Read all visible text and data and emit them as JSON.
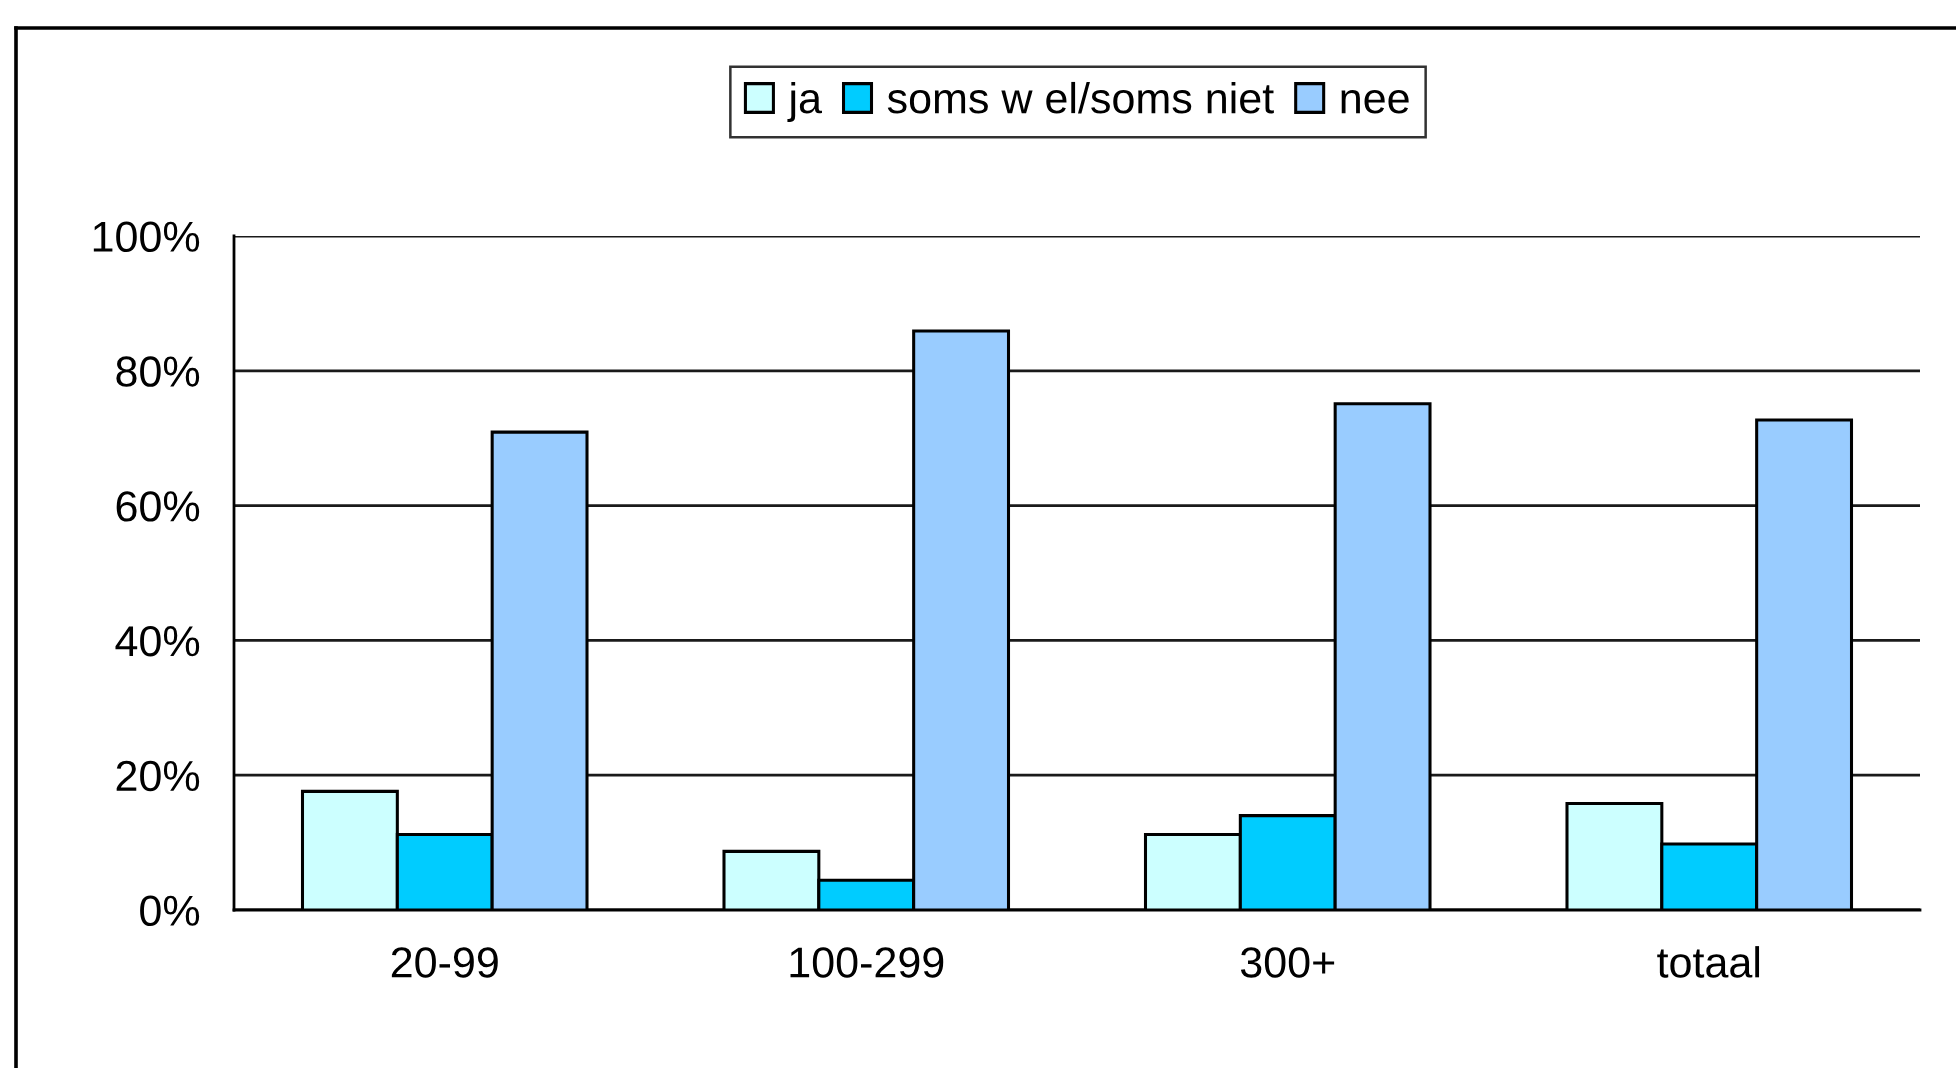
{
  "chart_data": {
    "type": "bar",
    "categories": [
      "20-99",
      "100-299",
      "300+",
      "totaal"
    ],
    "series": [
      {
        "name": "ja",
        "color": "#ccffff",
        "values": [
          17.6,
          8.7,
          11.2,
          15.8
        ]
      },
      {
        "name": "soms w el/soms niet",
        "color": "#00ccff",
        "values": [
          11.2,
          4.4,
          14.0,
          9.8
        ]
      },
      {
        "name": "nee",
        "color": "#99ccff",
        "values": [
          70.9,
          85.9,
          75.1,
          72.7
        ]
      }
    ],
    "ylim": [
      0,
      100
    ],
    "yticks": [
      {
        "value": 0,
        "label": "0%"
      },
      {
        "value": 20,
        "label": "20%"
      },
      {
        "value": 40,
        "label": "40%"
      },
      {
        "value": 60,
        "label": "60%"
      },
      {
        "value": 80,
        "label": "80%"
      },
      {
        "value": 100,
        "label": "100%"
      }
    ],
    "grid": "y",
    "legend": "top"
  }
}
